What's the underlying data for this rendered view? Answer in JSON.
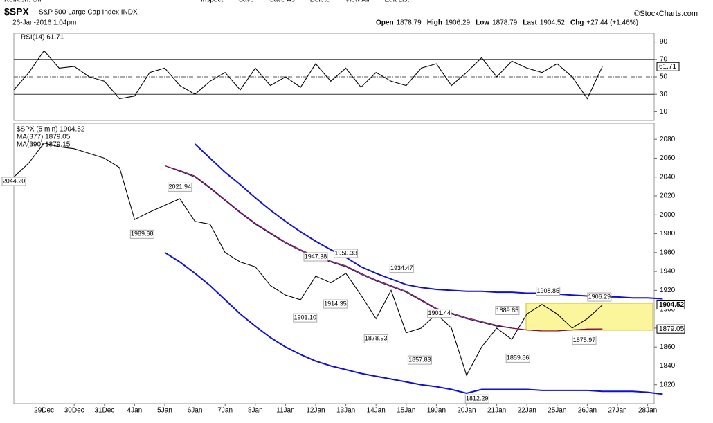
{
  "toolbar": {
    "items": [
      "Refresh: Off",
      "Inspect",
      "Save",
      "Save As",
      "Delete",
      "View All",
      "Edit List"
    ]
  },
  "header": {
    "symbol": "$SPX",
    "name": "S&P 500 Large Cap Index INDX",
    "credit": "©StockCharts.com",
    "date": "26-Jan-2016 1:04pm",
    "stats": [
      {
        "label": "Open",
        "value": "1878.79"
      },
      {
        "label": "High",
        "value": "1906.29"
      },
      {
        "label": "Low",
        "value": "1878.79"
      },
      {
        "label": "Last",
        "value": "1904.52"
      },
      {
        "label": "Chg",
        "value": "+27.44 (+1.46%)"
      }
    ]
  },
  "chart_data": [
    {
      "type": "line",
      "title": "RSI(14) 61.71",
      "ylim": [
        0,
        100
      ],
      "yticks": [
        10,
        30,
        50,
        70,
        90
      ],
      "last": {
        "value": 61.71,
        "label": "61.71"
      },
      "series": [
        {
          "color": "#000000",
          "values": [
            35,
            55,
            80,
            60,
            62,
            50,
            45,
            25,
            28,
            55,
            60,
            40,
            30,
            45,
            55,
            35,
            60,
            40,
            50,
            38,
            65,
            45,
            60,
            38,
            55,
            45,
            40,
            60,
            65,
            40,
            55,
            72,
            50,
            68,
            60,
            55,
            65,
            50,
            25,
            61.71,
            null,
            null,
            null,
            null
          ]
        }
      ]
    },
    {
      "type": "line",
      "ylim": [
        1800,
        2097
      ],
      "yticks": [
        1820,
        1840,
        1860,
        1880,
        1900,
        1920,
        1940,
        1960,
        1980,
        2000,
        2020,
        2040,
        2060,
        2080
      ],
      "categories": [
        null,
        null,
        "29Dec",
        null,
        "30Dec",
        null,
        "31Dec",
        null,
        "4Jan",
        null,
        "5Jan",
        null,
        "6Jan",
        null,
        "7Jan",
        null,
        "8Jan",
        null,
        "11Jan",
        null,
        "12Jan",
        null,
        "13Jan",
        null,
        "14Jan",
        null,
        "15Jan",
        null,
        "19Jan",
        null,
        "20Jan",
        null,
        "21Jan",
        null,
        "22Jan",
        null,
        "25Jan",
        null,
        "26Jan",
        null,
        "27Jan",
        null,
        "28Jan",
        null
      ],
      "series": [
        {
          "name": "$SPX (5 min) 1904.52",
          "color": "#000000",
          "values": [
            2040,
            2055,
            2076,
            2072,
            2070,
            2065,
            2060,
            2050,
            1995,
            2003,
            2010,
            2017,
            1993,
            1990,
            1960,
            1950,
            1945,
            1925,
            1915,
            1910,
            1935,
            1928,
            1938,
            1915,
            1890,
            1920,
            1875,
            1880,
            1895,
            1880,
            1830,
            1860,
            1880,
            1868,
            1895,
            1905,
            1895,
            1880,
            1890,
            1904.52,
            null,
            null,
            null,
            null
          ]
        },
        {
          "name": "MA(377) 1879.05",
          "color": "#1a1a6e",
          "values": [
            null,
            null,
            null,
            null,
            null,
            null,
            null,
            null,
            null,
            null,
            2052,
            2046,
            2040,
            2028,
            2015,
            2002,
            1990,
            1980,
            1970,
            1962,
            1955,
            1950,
            1945,
            1937,
            1930,
            1924,
            1918,
            1909,
            1900,
            1895,
            1890,
            1886,
            1882,
            1880,
            1878,
            1877,
            1877,
            1878,
            1879,
            1879.05,
            null,
            null,
            null,
            null
          ]
        },
        {
          "name": "MA(390) 1879.15",
          "color": "#8b0040",
          "values": [
            null,
            null,
            null,
            null,
            null,
            null,
            null,
            null,
            null,
            null,
            2052,
            2047,
            2041,
            2029,
            2016,
            2003,
            1991,
            1981,
            1971,
            1963,
            1956,
            1951,
            1946,
            1938,
            1931,
            1925,
            1919,
            1910,
            1901,
            1896,
            1891,
            1887,
            1883,
            1880,
            1878,
            1877,
            1877,
            1878,
            1879,
            1879.15,
            null,
            null,
            null,
            null
          ]
        },
        {
          "color": "#1010d0",
          "values": [
            null,
            null,
            null,
            null,
            null,
            null,
            null,
            null,
            null,
            null,
            null,
            null,
            2075,
            2060,
            2045,
            2032,
            2018,
            2005,
            1993,
            1982,
            1972,
            1963,
            1955,
            1945,
            1938,
            1932,
            1926,
            1923,
            1921,
            1920,
            1919,
            1919,
            1918,
            1918,
            1917,
            1917,
            1916,
            1915,
            1914,
            1913,
            1913,
            1912,
            1912,
            1911
          ]
        },
        {
          "color": "#1010d0",
          "values": [
            null,
            null,
            null,
            null,
            null,
            null,
            null,
            null,
            null,
            null,
            1960,
            1950,
            1938,
            1925,
            1910,
            1895,
            1882,
            1870,
            1860,
            1852,
            1845,
            1840,
            1836,
            1832,
            1829,
            1826,
            1823,
            1820,
            1818,
            1815,
            1811,
            1815,
            1815,
            1815,
            1815,
            1814,
            1814,
            1814,
            1814,
            1813,
            1813,
            1813,
            1812,
            1810
          ]
        }
      ],
      "annotations": [
        {
          "label": "2044.20",
          "value": 2044.2
        },
        {
          "label": "2021.94",
          "value": 2021.94
        },
        {
          "label": "1989.68",
          "value": 1989.68
        },
        {
          "label": "1947.38",
          "value": 1947.38
        },
        {
          "label": "1950.33",
          "value": 1950.33
        },
        {
          "label": "1934.47",
          "value": 1934.47
        },
        {
          "label": "1914.35",
          "value": 1914.35
        },
        {
          "label": "1901.10",
          "value": 1901.1
        },
        {
          "label": "1878.93",
          "value": 1878.93
        },
        {
          "label": "1901.44",
          "value": 1901.44
        },
        {
          "label": "1889.85",
          "value": 1889.85
        },
        {
          "label": "1857.83",
          "value": 1857.83
        },
        {
          "label": "1859.86",
          "value": 1859.86
        },
        {
          "label": "1812.29",
          "value": 1812.29
        },
        {
          "label": "1908.85",
          "value": 1908.85
        },
        {
          "label": "1906.29",
          "value": 1906.29
        },
        {
          "label": "1875.97",
          "value": 1875.97
        }
      ],
      "last": [
        {
          "value": 1904.52,
          "label": "1904.52"
        },
        {
          "value": 1879.05,
          "label": "1879.05"
        }
      ]
    }
  ]
}
